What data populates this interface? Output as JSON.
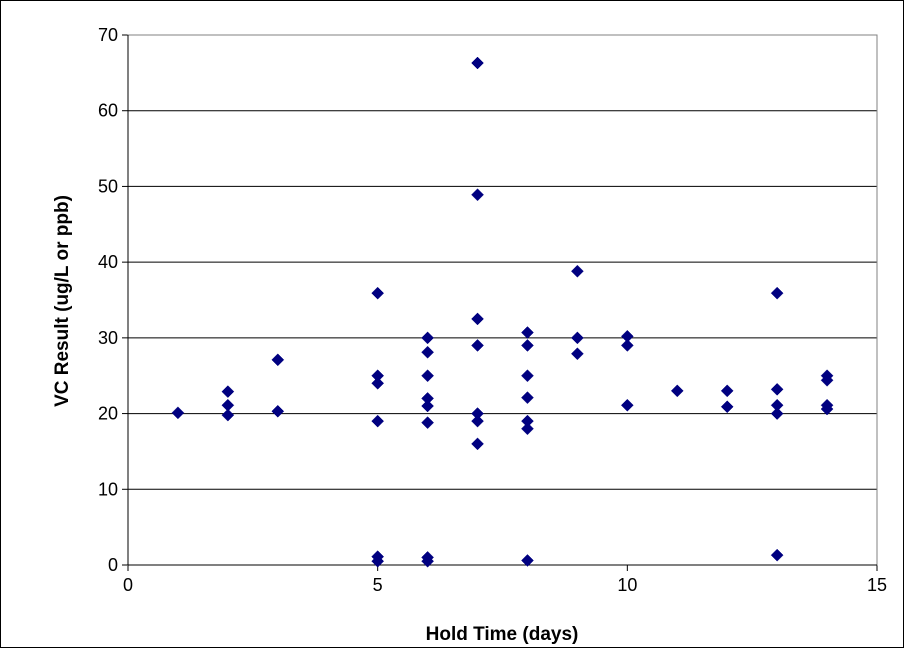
{
  "chart_data": {
    "type": "scatter",
    "title": "",
    "xlabel": "Hold Time (days)",
    "ylabel": "VC Result (ug/L or ppb)",
    "xlim": [
      0,
      15
    ],
    "ylim": [
      0,
      70
    ],
    "x_ticks": [
      "0",
      "5",
      "10",
      "15"
    ],
    "y_ticks": [
      "0",
      "10",
      "20",
      "30",
      "40",
      "50",
      "60",
      "70"
    ],
    "grid": "horizontal",
    "legend": "none",
    "marker": "diamond",
    "color": "#000080",
    "points": [
      [
        1,
        20.1
      ],
      [
        2,
        22.9
      ],
      [
        2,
        21.1
      ],
      [
        2,
        19.8
      ],
      [
        3,
        27.1
      ],
      [
        3,
        20.3
      ],
      [
        5,
        35.9
      ],
      [
        5,
        25.0
      ],
      [
        5,
        24.0
      ],
      [
        5,
        19.0
      ],
      [
        5,
        1.1
      ],
      [
        5,
        0.5
      ],
      [
        6,
        30.0
      ],
      [
        6,
        28.1
      ],
      [
        6,
        25.0
      ],
      [
        6,
        22.0
      ],
      [
        6,
        21.0
      ],
      [
        6,
        18.8
      ],
      [
        6,
        1.0
      ],
      [
        6,
        0.5
      ],
      [
        7,
        66.3
      ],
      [
        7,
        48.9
      ],
      [
        7,
        32.5
      ],
      [
        7,
        29.0
      ],
      [
        7,
        20.0
      ],
      [
        7,
        19.0
      ],
      [
        7,
        16.0
      ],
      [
        8,
        30.7
      ],
      [
        8,
        29.0
      ],
      [
        8,
        25.0
      ],
      [
        8,
        22.1
      ],
      [
        8,
        19.0
      ],
      [
        8,
        18.0
      ],
      [
        8,
        0.6
      ],
      [
        9,
        38.8
      ],
      [
        9,
        30.0
      ],
      [
        9,
        27.9
      ],
      [
        10,
        30.2
      ],
      [
        10,
        29.0
      ],
      [
        10,
        21.1
      ],
      [
        11,
        23.0
      ],
      [
        12,
        23.0
      ],
      [
        12,
        20.9
      ],
      [
        13,
        35.9
      ],
      [
        13,
        23.2
      ],
      [
        13,
        21.1
      ],
      [
        13,
        20.0
      ],
      [
        13,
        1.3
      ],
      [
        14,
        25.0
      ],
      [
        14,
        24.4
      ],
      [
        14,
        21.1
      ],
      [
        14,
        20.6
      ]
    ]
  }
}
